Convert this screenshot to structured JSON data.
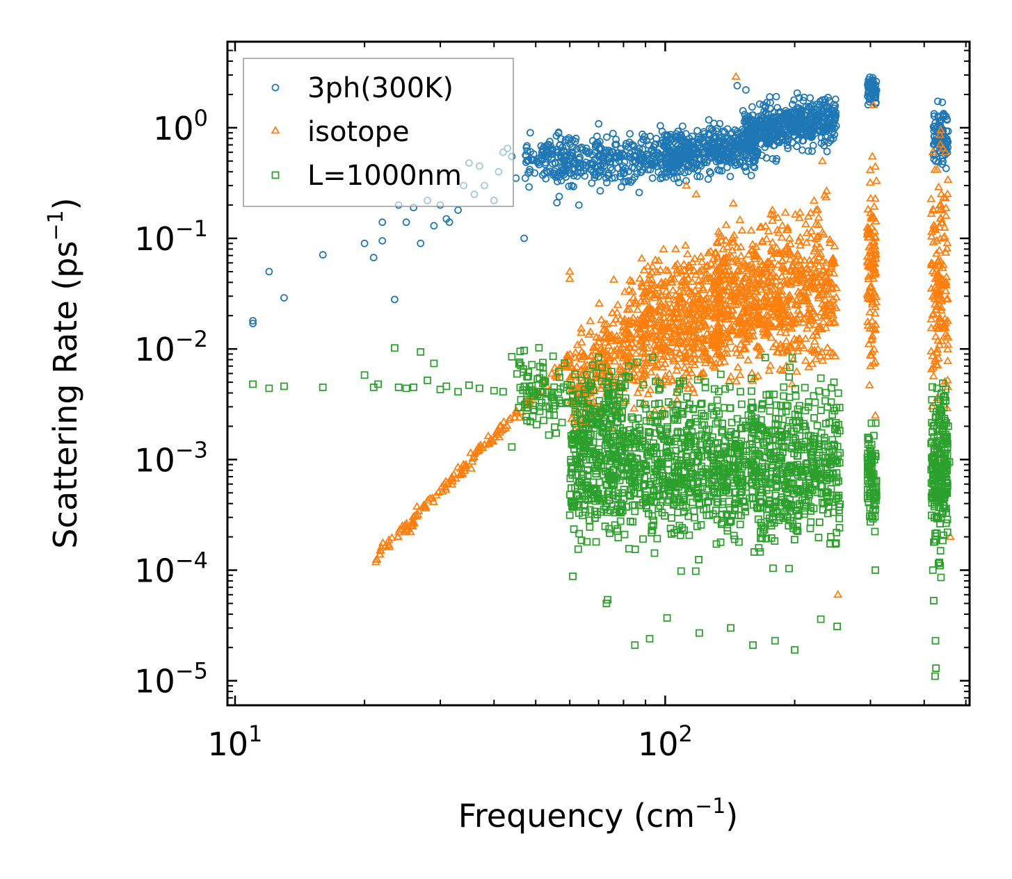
{
  "chart_data": {
    "type": "scatter",
    "title": "",
    "xlabel": "Frequency (cm",
    "xlabel_sup": "−1",
    "xlabel_end": ")",
    "ylabel": "Scattering Rate (ps",
    "ylabel_sup": "−1",
    "ylabel_end": ")",
    "xscale": "log",
    "yscale": "log",
    "xlim": [
      9.6,
      510
    ],
    "ylim": [
      6e-06,
      6
    ],
    "xticks": [
      {
        "base": "10",
        "exp": "1"
      },
      {
        "base": "10",
        "exp": "2"
      }
    ],
    "xtick_values": [
      10,
      100
    ],
    "yticks": [
      {
        "base": "10",
        "exp": "0"
      },
      {
        "base": "10",
        "exp": "−1"
      },
      {
        "base": "10",
        "exp": "−2"
      },
      {
        "base": "10",
        "exp": "−3"
      },
      {
        "base": "10",
        "exp": "−4"
      },
      {
        "base": "10",
        "exp": "−5"
      }
    ],
    "ytick_values": [
      1,
      0.1,
      0.01,
      0.001,
      0.0001,
      1e-05
    ],
    "legend_position": "top-left",
    "series": [
      {
        "name": "3ph(300K)",
        "marker": "circle",
        "color": "#1f77b4",
        "clusters": [
          {
            "x_range": [
              47,
              110
            ],
            "log_y_center": -0.28,
            "log_y_slope": 0.22,
            "log_y_spread": 0.12,
            "count": 420
          },
          {
            "x_range": [
              100,
              165
            ],
            "log_y_center": -0.2,
            "log_y_slope": 0.35,
            "log_y_spread": 0.1,
            "count": 420
          },
          {
            "x_range": [
              150,
              250
            ],
            "log_y_center": 0.02,
            "log_y_slope": 0.55,
            "log_y_spread": 0.1,
            "count": 520
          },
          {
            "x_range": [
              295,
              310
            ],
            "log_y_center": 0.35,
            "log_y_slope": 0.0,
            "log_y_spread": 0.06,
            "count": 60
          },
          {
            "x_range": [
              420,
              455
            ],
            "log_y_center": -0.1,
            "log_y_slope": 0.0,
            "log_y_spread": 0.12,
            "count": 90
          }
        ],
        "points": [
          {
            "x": 11.0,
            "y": 0.018
          },
          {
            "x": 11.0,
            "y": 0.017
          },
          {
            "x": 12.0,
            "y": 0.05
          },
          {
            "x": 13.0,
            "y": 0.029
          },
          {
            "x": 16.0,
            "y": 0.071
          },
          {
            "x": 20.0,
            "y": 0.09
          },
          {
            "x": 21.0,
            "y": 0.067
          },
          {
            "x": 22.0,
            "y": 0.14
          },
          {
            "x": 22.0,
            "y": 0.095
          },
          {
            "x": 23.5,
            "y": 0.028
          },
          {
            "x": 24.0,
            "y": 0.2
          },
          {
            "x": 25.0,
            "y": 0.14
          },
          {
            "x": 26.0,
            "y": 0.19
          },
          {
            "x": 27.0,
            "y": 0.09
          },
          {
            "x": 28.0,
            "y": 0.22
          },
          {
            "x": 29.0,
            "y": 0.13
          },
          {
            "x": 30.0,
            "y": 0.2
          },
          {
            "x": 31.0,
            "y": 0.15
          },
          {
            "x": 31.5,
            "y": 0.14
          },
          {
            "x": 33.0,
            "y": 0.18
          },
          {
            "x": 34.0,
            "y": 0.3
          },
          {
            "x": 35.0,
            "y": 0.48
          },
          {
            "x": 36.0,
            "y": 0.25
          },
          {
            "x": 37.0,
            "y": 0.45
          },
          {
            "x": 38.0,
            "y": 0.3
          },
          {
            "x": 40.0,
            "y": 0.22
          },
          {
            "x": 41.0,
            "y": 0.4
          },
          {
            "x": 42.0,
            "y": 0.6
          },
          {
            "x": 43.0,
            "y": 0.65
          },
          {
            "x": 44.0,
            "y": 0.55
          },
          {
            "x": 45.0,
            "y": 0.35
          },
          {
            "x": 47.0,
            "y": 0.1
          },
          {
            "x": 56.0,
            "y": 0.21
          },
          {
            "x": 63.0,
            "y": 0.2
          },
          {
            "x": 87.0,
            "y": 0.26
          },
          {
            "x": 147.0,
            "y": 2.4
          },
          {
            "x": 154.0,
            "y": 2.2
          },
          {
            "x": 160.0,
            "y": 1.3
          },
          {
            "x": 175.0,
            "y": 1.9
          },
          {
            "x": 181.0,
            "y": 0.5
          }
        ]
      },
      {
        "name": "isotope",
        "marker": "triangle",
        "color": "#ff7f0e",
        "clusters": [
          {
            "x_range": [
              21,
              60
            ],
            "log_y_center": -3.0,
            "log_y_slope": 4.0,
            "log_y_spread": 0.03,
            "count": 160
          },
          {
            "x_range": [
              60,
              90
            ],
            "log_y_center": -2.1,
            "log_y_slope": 3.3,
            "log_y_spread": 0.25,
            "count": 320
          },
          {
            "x_range": [
              88,
              135
            ],
            "log_y_center": -1.75,
            "log_y_slope": 0.9,
            "log_y_spread": 0.28,
            "count": 520
          },
          {
            "x_range": [
              130,
              250
            ],
            "log_y_center": -1.5,
            "log_y_slope": 0.6,
            "log_y_spread": 0.32,
            "count": 780
          },
          {
            "x_range": [
              295,
              310
            ],
            "log_y_center": -1.3,
            "log_y_slope": 0.0,
            "log_y_spread": 0.45,
            "count": 110
          },
          {
            "x_range": [
              415,
              455
            ],
            "log_y_center": -1.4,
            "log_y_slope": 0.0,
            "log_y_spread": 0.5,
            "count": 150
          }
        ],
        "points": [
          {
            "x": 146.0,
            "y": 2.9
          },
          {
            "x": 305.0,
            "y": 1.6
          },
          {
            "x": 303.0,
            "y": 0.55
          },
          {
            "x": 437.0,
            "y": 0.95
          },
          {
            "x": 448.0,
            "y": 0.6
          },
          {
            "x": 460.0,
            "y": 0.0002
          },
          {
            "x": 252.0,
            "y": 6e-05
          },
          {
            "x": 118.0,
            "y": 0.25
          },
          {
            "x": 112.0,
            "y": 0.3
          },
          {
            "x": 60.0,
            "y": 0.05
          },
          {
            "x": 60.0,
            "y": 0.043
          },
          {
            "x": 300.0,
            "y": 0.007
          },
          {
            "x": 308.0,
            "y": 0.0025
          },
          {
            "x": 232.0,
            "y": 0.5
          }
        ]
      },
      {
        "name": "L=1000nm",
        "marker": "square",
        "color": "#2ca02c",
        "clusters": [
          {
            "x_range": [
              45,
              80
            ],
            "log_y_center": -2.45,
            "log_y_slope": -0.8,
            "log_y_spread": 0.16,
            "count": 160
          },
          {
            "x_range": [
              60,
              255
            ],
            "log_y_center": -3.05,
            "log_y_slope": 0.0,
            "log_y_spread": 0.33,
            "count": 1500
          },
          {
            "x_range": [
              295,
              310
            ],
            "log_y_center": -3.15,
            "log_y_slope": 0.0,
            "log_y_spread": 0.22,
            "count": 90
          },
          {
            "x_range": [
              415,
              455
            ],
            "log_y_center": -3.05,
            "log_y_slope": 0.0,
            "log_y_spread": 0.35,
            "count": 220
          }
        ],
        "points": [
          {
            "x": 11.0,
            "y": 0.0048
          },
          {
            "x": 12.0,
            "y": 0.0044
          },
          {
            "x": 13.0,
            "y": 0.0046
          },
          {
            "x": 16.0,
            "y": 0.0045
          },
          {
            "x": 20.0,
            "y": 0.0058
          },
          {
            "x": 21.0,
            "y": 0.0045
          },
          {
            "x": 21.5,
            "y": 0.0048
          },
          {
            "x": 23.5,
            "y": 0.0102
          },
          {
            "x": 24.0,
            "y": 0.0045
          },
          {
            "x": 25.0,
            "y": 0.0044
          },
          {
            "x": 26.0,
            "y": 0.0045
          },
          {
            "x": 27.0,
            "y": 0.0094
          },
          {
            "x": 28.0,
            "y": 0.0052
          },
          {
            "x": 29.0,
            "y": 0.0074
          },
          {
            "x": 30.0,
            "y": 0.0043
          },
          {
            "x": 31.0,
            "y": 0.0046
          },
          {
            "x": 33.0,
            "y": 0.0041
          },
          {
            "x": 35.0,
            "y": 0.0047
          },
          {
            "x": 37.0,
            "y": 0.0044
          },
          {
            "x": 40.0,
            "y": 0.0042
          },
          {
            "x": 42.0,
            "y": 0.0041
          },
          {
            "x": 44.0,
            "y": 0.0085
          },
          {
            "x": 46.0,
            "y": 0.0095
          },
          {
            "x": 47.0,
            "y": 0.0097
          },
          {
            "x": 49.0,
            "y": 0.0072
          },
          {
            "x": 52.0,
            "y": 0.0068
          },
          {
            "x": 44.0,
            "y": 0.0013
          },
          {
            "x": 61.0,
            "y": 8.8e-05
          },
          {
            "x": 73.0,
            "y": 5e-05
          },
          {
            "x": 73.5,
            "y": 5.4e-05
          },
          {
            "x": 85.0,
            "y": 2.1e-05
          },
          {
            "x": 92.0,
            "y": 2.4e-05
          },
          {
            "x": 101.0,
            "y": 3.7e-05
          },
          {
            "x": 120.0,
            "y": 2.7e-05
          },
          {
            "x": 142.0,
            "y": 3e-05
          },
          {
            "x": 160.0,
            "y": 2.1e-05
          },
          {
            "x": 180.0,
            "y": 2.3e-05
          },
          {
            "x": 200.0,
            "y": 1.9e-05
          },
          {
            "x": 230.0,
            "y": 3.6e-05
          },
          {
            "x": 251.0,
            "y": 3.1e-05
          },
          {
            "x": 308.0,
            "y": 0.0001
          },
          {
            "x": 419.0,
            "y": 0.0001
          },
          {
            "x": 421.0,
            "y": 5.3e-05
          },
          {
            "x": 425.0,
            "y": 2.3e-05
          },
          {
            "x": 426.0,
            "y": 1.3e-05
          },
          {
            "x": 424.0,
            "y": 1.1e-05
          },
          {
            "x": 452.0,
            "y": 0.0005
          },
          {
            "x": 458.0,
            "y": 0.00095
          },
          {
            "x": 86.0,
            "y": 0.0076
          },
          {
            "x": 70.0,
            "y": 0.0084
          },
          {
            "x": 64.0,
            "y": 0.0052
          }
        ]
      }
    ]
  }
}
